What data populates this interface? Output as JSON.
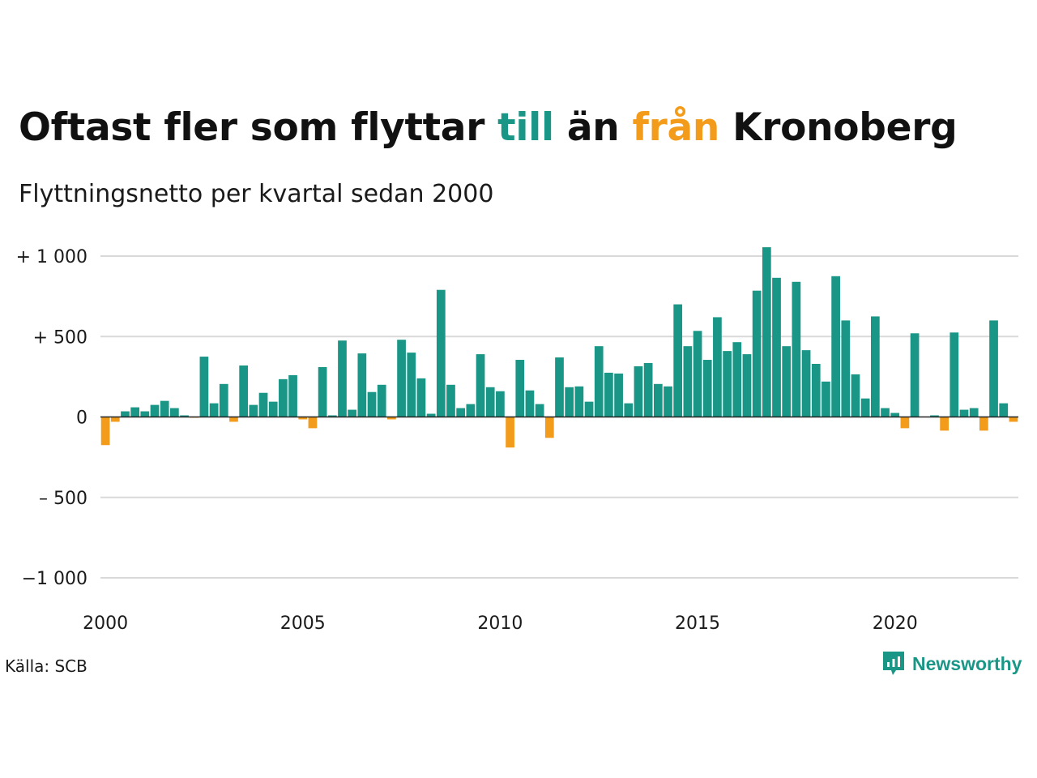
{
  "header": {
    "title_part1": "Oftast fler som flyttar ",
    "title_till": "till",
    "title_part2": " än ",
    "title_fran": "från",
    "title_part3": " Kronoberg",
    "subtitle": "Flyttningsnetto per kvartal sedan 2000"
  },
  "footer": {
    "source": "Källa: SCB",
    "brand": "Newsworthy"
  },
  "colors": {
    "positive": "#1a9687",
    "negative": "#f39c1b",
    "grid": "#d9d9d9",
    "zero_line": "#222222"
  },
  "icons": {
    "brand_logo": "newsworthy-logo-icon"
  },
  "chart_data": {
    "type": "bar",
    "title": "Oftast fler som flyttar till än från Kronoberg",
    "subtitle": "Flyttningsnetto per kvartal sedan 2000",
    "xlabel": "",
    "ylabel": "",
    "ylim": [
      -1000,
      1000
    ],
    "y_ticks": [
      {
        "value": 1000,
        "label": "+ 1 000"
      },
      {
        "value": 500,
        "label": "+   500"
      },
      {
        "value": 0,
        "label": "0"
      },
      {
        "value": -500,
        "label": "–  500"
      },
      {
        "value": -1000,
        "label": "−1 000"
      }
    ],
    "x_ticks": [
      "2000",
      "2005",
      "2010",
      "2015",
      "2020"
    ],
    "grid": true,
    "legend": "none",
    "start_year": 2000,
    "series": [
      {
        "values": [
          -175,
          -30,
          35,
          60,
          35,
          75,
          100,
          55,
          10,
          -5,
          375,
          85,
          205,
          -30,
          320,
          75,
          150,
          95,
          235,
          260,
          -15,
          -70,
          310,
          10,
          475,
          45,
          395,
          155,
          200,
          -15,
          480,
          400,
          240,
          20,
          790,
          200,
          55,
          80,
          390,
          185,
          160,
          -190,
          355,
          165,
          80,
          -130,
          370,
          185,
          190,
          95,
          440,
          275,
          270,
          85,
          315,
          335,
          205,
          190,
          700,
          440,
          535,
          355,
          620,
          410,
          465,
          390,
          785,
          1055,
          865,
          440,
          840,
          415,
          330,
          220,
          875,
          600,
          265,
          115,
          625,
          55,
          25,
          -70,
          520,
          0,
          10,
          -85,
          525,
          45,
          55,
          -85,
          600,
          85,
          -30
        ]
      }
    ]
  }
}
